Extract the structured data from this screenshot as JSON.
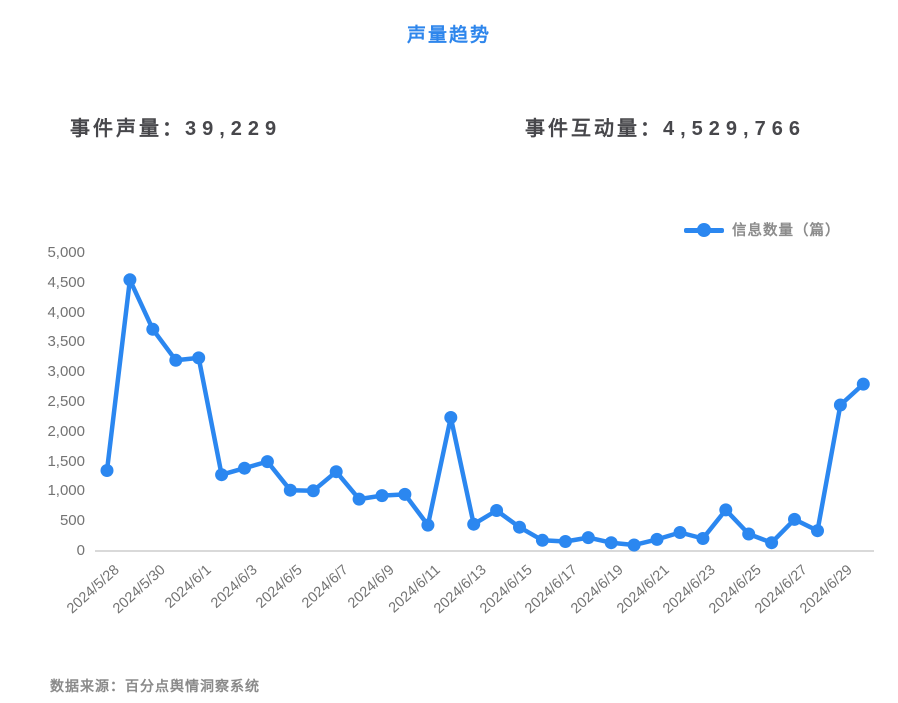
{
  "page": {
    "title": "声量趋势",
    "source": "数据来源：百分点舆情洞察系统"
  },
  "stats": {
    "volume_label": "事件声量：",
    "volume_value": "39,229",
    "interaction_label": "事件互动量：",
    "interaction_value": "4,529,766"
  },
  "legend": {
    "label": "信息数量（篇）"
  },
  "colors": {
    "accent_blue": "#2b87f0",
    "title_blue": "#2e86ec",
    "axis_line": "#d9d9d9",
    "axis_text": "#737373",
    "stat_text": "#47474b",
    "muted_text": "#8a8a8a",
    "background": "#ffffff"
  },
  "chart_data": {
    "type": "line",
    "title": "声量趋势",
    "legend_position": "top-right",
    "grid": false,
    "ylabel": "",
    "xlabel": "",
    "ylim": [
      0,
      5000
    ],
    "y_ticks": [
      "0",
      "500",
      "1,000",
      "1,500",
      "2,000",
      "2,500",
      "3,000",
      "3,500",
      "4,000",
      "4,500",
      "5,000"
    ],
    "y_tick_values": [
      0,
      500,
      1000,
      1500,
      2000,
      2500,
      3000,
      3500,
      4000,
      4500,
      5000
    ],
    "x": [
      "2024/5/28",
      "2024/5/29",
      "2024/5/30",
      "2024/5/31",
      "2024/6/1",
      "2024/6/2",
      "2024/6/3",
      "2024/6/4",
      "2024/6/5",
      "2024/6/6",
      "2024/6/7",
      "2024/6/8",
      "2024/6/9",
      "2024/6/10",
      "2024/6/11",
      "2024/6/12",
      "2024/6/13",
      "2024/6/14",
      "2024/6/15",
      "2024/6/16",
      "2024/6/17",
      "2024/6/18",
      "2024/6/19",
      "2024/6/20",
      "2024/6/21",
      "2024/6/22",
      "2024/6/23",
      "2024/6/24",
      "2024/6/25",
      "2024/6/26",
      "2024/6/27",
      "2024/6/28",
      "2024/6/29",
      "2024/6/30"
    ],
    "x_tick_labels": [
      "2024/5/28",
      "2024/5/30",
      "2024/6/1",
      "2024/6/3",
      "2024/6/5",
      "2024/6/7",
      "2024/6/9",
      "2024/6/11",
      "2024/6/13",
      "2024/6/15",
      "2024/6/17",
      "2024/6/19",
      "2024/6/21",
      "2024/6/23",
      "2024/6/25",
      "2024/6/27",
      "2024/6/29"
    ],
    "x_tick_every": 2,
    "series": [
      {
        "name": "信息数量（篇）",
        "values": [
          1350,
          4550,
          3720,
          3200,
          3240,
          1280,
          1390,
          1500,
          1020,
          1010,
          1330,
          870,
          930,
          950,
          435,
          2240,
          450,
          680,
          400,
          180,
          160,
          225,
          140,
          100,
          195,
          310,
          210,
          690,
          285,
          140,
          530,
          340,
          2450,
          2800
        ]
      }
    ]
  }
}
